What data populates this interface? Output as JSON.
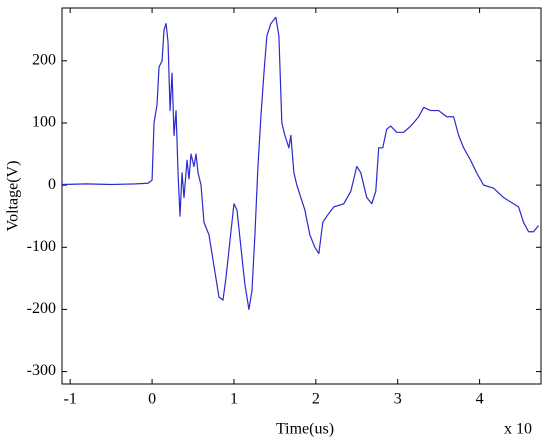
{
  "chart_data": {
    "type": "line",
    "x_label": "Time(us)",
    "y_label": "Voltage(V)",
    "x_multiplier": "x 10",
    "xlim": [
      -1.1,
      4.75
    ],
    "xticks": [
      -1,
      0,
      1,
      2,
      3,
      4
    ],
    "ylim": [
      -320,
      285
    ],
    "yticks": [
      -300,
      -200,
      -100,
      0,
      100,
      200
    ],
    "grid": false,
    "series": [
      {
        "color": "#2a2acf",
        "x": [
          -1.1,
          -0.8,
          -0.5,
          -0.2,
          -0.05,
          0,
          0.024,
          0.061,
          0.085,
          0.122,
          0.146,
          0.171,
          0.195,
          0.22,
          0.244,
          0.268,
          0.293,
          0.317,
          0.341,
          0.366,
          0.39,
          0.427,
          0.451,
          0.476,
          0.512,
          0.537,
          0.561,
          0.598,
          0.634,
          0.695,
          0.756,
          0.817,
          0.866,
          0.902,
          0.951,
          1.0,
          1.037,
          1.085,
          1.134,
          1.183,
          1.22,
          1.256,
          1.293,
          1.329,
          1.366,
          1.402,
          1.451,
          1.512,
          1.549,
          1.585,
          1.622,
          1.671,
          1.695,
          1.732,
          1.768,
          1.817,
          1.866,
          1.927,
          1.988,
          2.037,
          2.085,
          2.134,
          2.22,
          2.341,
          2.427,
          2.5,
          2.549,
          2.622,
          2.683,
          2.732,
          2.768,
          2.817,
          2.866,
          2.915,
          2.988,
          3.073,
          3.159,
          3.256,
          3.317,
          3.402,
          3.5,
          3.598,
          3.683,
          3.744,
          3.805,
          3.89,
          3.963,
          4.049,
          4.171,
          4.293,
          4.415,
          4.476,
          4.537,
          4.598,
          4.659,
          4.72
        ],
        "values": [
          1,
          2,
          1,
          2,
          3,
          8,
          100,
          130,
          190,
          200,
          250,
          260,
          230,
          120,
          180,
          80,
          120,
          20,
          -50,
          20,
          -20,
          40,
          10,
          50,
          30,
          50,
          20,
          0,
          -60,
          -80,
          -130,
          -180,
          -185,
          -150,
          -90,
          -30,
          -40,
          -100,
          -160,
          -200,
          -170,
          -80,
          30,
          110,
          180,
          240,
          260,
          270,
          240,
          100,
          80,
          60,
          80,
          20,
          0,
          -20,
          -40,
          -80,
          -100,
          -110,
          -60,
          -50,
          -35,
          -30,
          -10,
          30,
          20,
          -20,
          -30,
          -10,
          60,
          60,
          90,
          95,
          85,
          85,
          95,
          110,
          125,
          120,
          120,
          110,
          110,
          80,
          60,
          40,
          20,
          0,
          -5,
          -20,
          -30,
          -35,
          -60,
          -75,
          -75,
          -65
        ]
      }
    ]
  }
}
